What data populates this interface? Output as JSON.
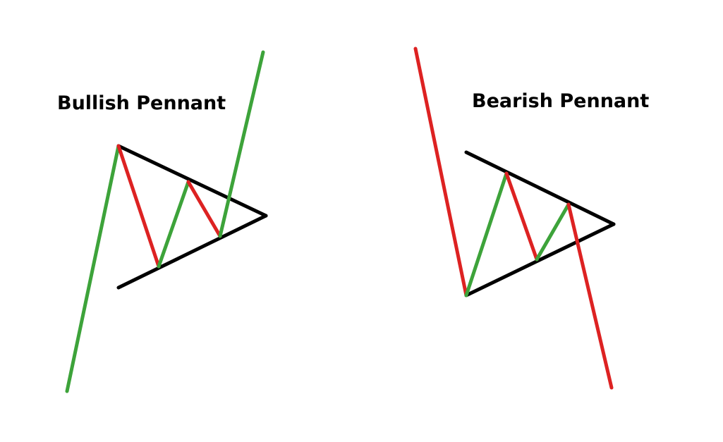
{
  "diagrams": [
    {
      "title": "Bullish Pennant"
    },
    {
      "title": "Bearish Pennant"
    }
  ],
  "colors": {
    "up_move": "#3da33a",
    "down_move": "#dd2222",
    "trendline": "#000000",
    "background": "#ffffff"
  }
}
